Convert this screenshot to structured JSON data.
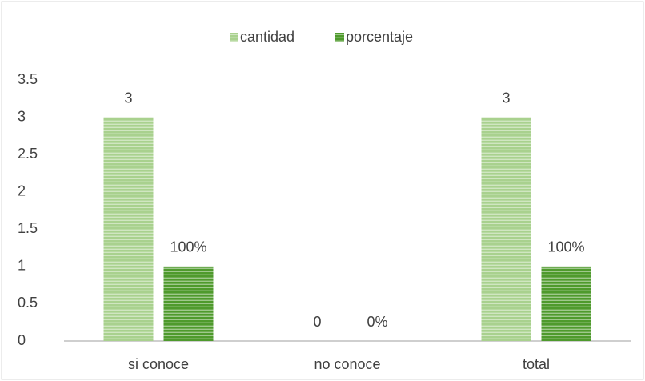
{
  "chart_data": {
    "type": "bar",
    "categories": [
      "si conoce",
      "no conoce",
      "total"
    ],
    "series": [
      {
        "name": "cantidad",
        "color": "#a9d18e",
        "values": [
          3,
          0,
          3
        ]
      },
      {
        "name": "porcentaje",
        "color": "#4e9a2c",
        "values": [
          1,
          0,
          1
        ],
        "value_labels": [
          "100%",
          "0%",
          "100%"
        ]
      }
    ],
    "ylim": [
      0,
      3.5
    ],
    "yticks": [
      0,
      0.5,
      1,
      1.5,
      2,
      2.5,
      3,
      3.5
    ],
    "grid": false,
    "legend": "top"
  }
}
